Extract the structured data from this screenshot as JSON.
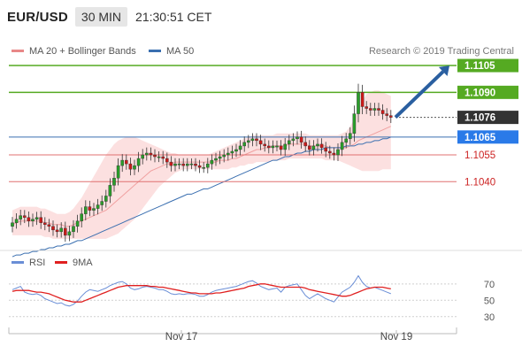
{
  "header": {
    "symbol": "EUR/USD",
    "timeframe": "30 MIN",
    "time": "21:30:51 CET"
  },
  "legend": {
    "ma20_label": "MA 20 + Bollinger Bands",
    "ma50_label": "MA 50",
    "copyright": "Research © 2019 Trading Central",
    "rsi_label": "RSI",
    "rsi_ma_label": "9MA"
  },
  "colors": {
    "green_level": "#55aa22",
    "red_level": "#e07070",
    "blue_level": "#3a6fb0",
    "last_price_bg": "#333333",
    "current_bg": "#2a7ae8",
    "arrow": "#2a5fa0",
    "candle_up": "#2a9d2a",
    "candle_down": "#cc1a1a",
    "band_fill": "#fbd6d6",
    "rsi_line": "#6a8ed6",
    "rsi_ma_line": "#e02020"
  },
  "chart_data": [
    {
      "type": "candlestick",
      "title": "EUR/USD 30 MIN",
      "ylim": [
        1.1004,
        1.1108
      ],
      "x_ticks": [
        "Nov 17",
        "Nov 19"
      ],
      "levels": [
        {
          "value": 1.1105,
          "label": "1.1105",
          "style": "green"
        },
        {
          "value": 1.109,
          "label": "1.1090",
          "style": "green"
        },
        {
          "value": 1.1076,
          "label": "1.1076",
          "style": "last"
        },
        {
          "value": 1.1065,
          "label": "1.1065",
          "style": "current"
        },
        {
          "value": 1.1055,
          "label": "1.1055",
          "style": "red"
        },
        {
          "value": 1.104,
          "label": "1.1040",
          "style": "red"
        }
      ],
      "closes": [
        1.1017,
        1.1019,
        1.1021,
        1.102,
        1.1018,
        1.1019,
        1.102,
        1.1017,
        1.1016,
        1.1015,
        1.1013,
        1.1012,
        1.1014,
        1.101,
        1.1012,
        1.1015,
        1.1018,
        1.1022,
        1.1026,
        1.1024,
        1.1025,
        1.1027,
        1.1029,
        1.1032,
        1.1038,
        1.1042,
        1.1049,
        1.1052,
        1.105,
        1.1047,
        1.1049,
        1.1053,
        1.1055,
        1.1056,
        1.1055,
        1.1054,
        1.1054,
        1.1053,
        1.1051,
        1.1049,
        1.105,
        1.105,
        1.1049,
        1.105,
        1.105,
        1.1049,
        1.1048,
        1.1048,
        1.105,
        1.1052,
        1.1053,
        1.1054,
        1.1055,
        1.1056,
        1.1057,
        1.1058,
        1.106,
        1.1062,
        1.1063,
        1.1064,
        1.1063,
        1.1061,
        1.106,
        1.1059,
        1.106,
        1.106,
        1.1058,
        1.1061,
        1.1063,
        1.1064,
        1.1065,
        1.1062,
        1.106,
        1.1058,
        1.106,
        1.1061,
        1.1059,
        1.1057,
        1.1056,
        1.1055,
        1.1058,
        1.1062,
        1.1064,
        1.1067,
        1.1078,
        1.109,
        1.1082,
        1.1081,
        1.108,
        1.1081,
        1.108,
        1.1078,
        1.1077,
        1.1076
      ],
      "ma20": [
        1.1016,
        1.1017,
        1.1018,
        1.1018,
        1.1018,
        1.1018,
        1.1018,
        1.1018,
        1.1017,
        1.1017,
        1.1016,
        1.1016,
        1.1016,
        1.1015,
        1.1015,
        1.1016,
        1.1017,
        1.1018,
        1.1019,
        1.102,
        1.1021,
        1.1022,
        1.1023,
        1.1024,
        1.1026,
        1.1028,
        1.103,
        1.1032,
        1.1034,
        1.1036,
        1.1038,
        1.104,
        1.1042,
        1.1044,
        1.1046,
        1.1047,
        1.1048,
        1.1049,
        1.105,
        1.105,
        1.1051,
        1.1051,
        1.1051,
        1.1051,
        1.1051,
        1.1051,
        1.1051,
        1.1051,
        1.1051,
        1.1051,
        1.1051,
        1.1052,
        1.1052,
        1.1052,
        1.1053,
        1.1053,
        1.1054,
        1.1055,
        1.1056,
        1.1057,
        1.1058,
        1.1058,
        1.1059,
        1.1059,
        1.106,
        1.106,
        1.106,
        1.106,
        1.1061,
        1.1061,
        1.1061,
        1.1061,
        1.1061,
        1.106,
        1.106,
        1.106,
        1.106,
        1.106,
        1.1059,
        1.1059,
        1.1059,
        1.1059,
        1.1059,
        1.106,
        1.1061,
        1.1063,
        1.1064,
        1.1065,
        1.1066,
        1.1067,
        1.1068,
        1.1069,
        1.107,
        1.1071
      ],
      "ma50": [
        1.0998,
        1.0999,
        1.0999,
        1.1,
        1.1,
        1.1001,
        1.1001,
        1.1002,
        1.1002,
        1.1003,
        1.1003,
        1.1004,
        1.1004,
        1.1005,
        1.1005,
        1.1006,
        1.1007,
        1.1007,
        1.1008,
        1.1009,
        1.101,
        1.1011,
        1.1012,
        1.1013,
        1.1014,
        1.1015,
        1.1016,
        1.1017,
        1.1018,
        1.1019,
        1.102,
        1.1021,
        1.1022,
        1.1023,
        1.1024,
        1.1025,
        1.1026,
        1.1027,
        1.1028,
        1.1029,
        1.103,
        1.1031,
        1.1032,
        1.1033,
        1.1033,
        1.1034,
        1.1035,
        1.1036,
        1.1036,
        1.1037,
        1.1038,
        1.1039,
        1.104,
        1.1041,
        1.1042,
        1.1043,
        1.1044,
        1.1045,
        1.1046,
        1.1047,
        1.1048,
        1.1049,
        1.105,
        1.1051,
        1.1052,
        1.1052,
        1.1053,
        1.1054,
        1.1054,
        1.1055,
        1.1056,
        1.1056,
        1.1057,
        1.1057,
        1.1058,
        1.1058,
        1.1058,
        1.1059,
        1.1059,
        1.1059,
        1.1059,
        1.1059,
        1.106,
        1.106,
        1.106,
        1.1061,
        1.1061,
        1.1062,
        1.1062,
        1.1063,
        1.1063,
        1.1064,
        1.1064,
        1.1065
      ],
      "band_upper": [
        1.1024,
        1.1025,
        1.1026,
        1.1026,
        1.1026,
        1.1026,
        1.1026,
        1.1025,
        1.1025,
        1.1024,
        1.1023,
        1.1022,
        1.1022,
        1.1022,
        1.1023,
        1.1025,
        1.1028,
        1.1031,
        1.1035,
        1.1039,
        1.1043,
        1.1047,
        1.1051,
        1.1055,
        1.1058,
        1.1061,
        1.1063,
        1.1064,
        1.1065,
        1.1065,
        1.1065,
        1.1064,
        1.1063,
        1.1062,
        1.1061,
        1.106,
        1.1059,
        1.1058,
        1.1057,
        1.1056,
        1.1056,
        1.1055,
        1.1055,
        1.1055,
        1.1055,
        1.1055,
        1.1055,
        1.1055,
        1.1055,
        1.1056,
        1.1057,
        1.1058,
        1.1059,
        1.106,
        1.1061,
        1.1062,
        1.1063,
        1.1064,
        1.1065,
        1.1066,
        1.1066,
        1.1066,
        1.1066,
        1.1066,
        1.1066,
        1.1067,
        1.1067,
        1.1067,
        1.1067,
        1.1067,
        1.1067,
        1.1067,
        1.1067,
        1.1066,
        1.1066,
        1.1066,
        1.1066,
        1.1066,
        1.1066,
        1.1066,
        1.1066,
        1.1067,
        1.1068,
        1.1071,
        1.1075,
        1.108,
        1.1085,
        1.1089,
        1.109,
        1.1091,
        1.1091,
        1.109,
        1.1089,
        1.1088
      ],
      "band_lower": [
        1.101,
        1.101,
        1.101,
        1.101,
        1.101,
        1.101,
        1.101,
        1.101,
        1.1009,
        1.1009,
        1.1008,
        1.1008,
        1.1008,
        1.1008,
        1.1008,
        1.1008,
        1.1008,
        1.1008,
        1.1008,
        1.1008,
        1.1008,
        1.1008,
        1.1008,
        1.1008,
        1.1009,
        1.101,
        1.1011,
        1.1013,
        1.1015,
        1.1017,
        1.1019,
        1.1022,
        1.1025,
        1.1028,
        1.1031,
        1.1034,
        1.1037,
        1.1039,
        1.1041,
        1.1043,
        1.1045,
        1.1046,
        1.1047,
        1.1047,
        1.1047,
        1.1047,
        1.1047,
        1.1047,
        1.1047,
        1.1047,
        1.1047,
        1.1047,
        1.1047,
        1.1047,
        1.1048,
        1.1048,
        1.1049,
        1.1049,
        1.105,
        1.105,
        1.1051,
        1.1051,
        1.1051,
        1.1051,
        1.1052,
        1.1052,
        1.1052,
        1.1052,
        1.1053,
        1.1053,
        1.1053,
        1.1053,
        1.1053,
        1.1053,
        1.1053,
        1.1053,
        1.1053,
        1.1052,
        1.1052,
        1.1052,
        1.1052,
        1.1051,
        1.105,
        1.1049,
        1.1048,
        1.1047,
        1.1046,
        1.1046,
        1.1046,
        1.1046,
        1.1046,
        1.1047,
        1.1047,
        1.1047
      ]
    },
    {
      "type": "line",
      "title": "RSI",
      "ylim": [
        20,
        85
      ],
      "y_ticks": [
        30,
        50,
        70
      ],
      "series": [
        {
          "name": "RSI",
          "values": [
            63,
            65,
            67,
            60,
            58,
            57,
            58,
            56,
            52,
            50,
            48,
            46,
            47,
            44,
            43,
            45,
            49,
            55,
            60,
            63,
            62,
            61,
            63,
            65,
            68,
            70,
            72,
            73,
            70,
            65,
            63,
            64,
            66,
            67,
            66,
            65,
            63,
            63,
            61,
            58,
            57,
            58,
            57,
            58,
            58,
            57,
            55,
            55,
            57,
            60,
            62,
            63,
            64,
            65,
            66,
            67,
            69,
            71,
            73,
            74,
            71,
            67,
            65,
            63,
            64,
            65,
            60,
            66,
            68,
            69,
            70,
            63,
            56,
            52,
            55,
            58,
            55,
            52,
            50,
            48,
            54,
            60,
            63,
            66,
            72,
            80,
            72,
            67,
            65,
            66,
            64,
            62,
            60,
            58
          ]
        },
        {
          "name": "9MA",
          "values": [
            61,
            62,
            62,
            62,
            62,
            61,
            60,
            60,
            59,
            58,
            56,
            54,
            52,
            50,
            49,
            48,
            48,
            48,
            50,
            52,
            54,
            56,
            58,
            60,
            62,
            64,
            66,
            67,
            68,
            68,
            68,
            68,
            68,
            68,
            67,
            67,
            66,
            66,
            65,
            64,
            63,
            62,
            61,
            60,
            59,
            59,
            58,
            58,
            58,
            58,
            59,
            59,
            60,
            61,
            62,
            63,
            64,
            65,
            67,
            68,
            69,
            70,
            70,
            69,
            68,
            67,
            66,
            66,
            66,
            66,
            66,
            66,
            65,
            63,
            62,
            61,
            60,
            59,
            58,
            57,
            56,
            55,
            55,
            56,
            58,
            60,
            62,
            64,
            65,
            66,
            66,
            66,
            65,
            64
          ]
        }
      ]
    }
  ]
}
